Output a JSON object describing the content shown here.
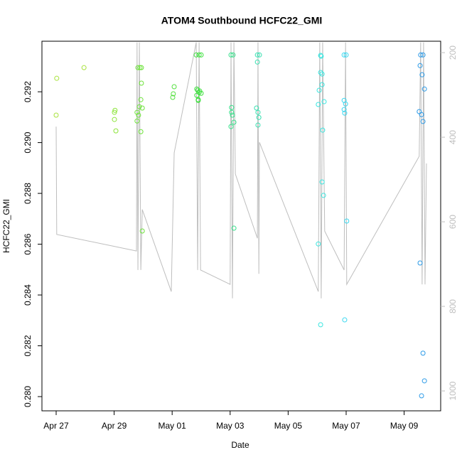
{
  "chart_data": {
    "type": "scatter",
    "title": "ATOM4 Southbound HCFC22_GMI",
    "x_label": "Date",
    "y_label": "HCFC22_GMI",
    "xlim": [
      -0.49,
      13.26
    ],
    "xticks": [
      {
        "value": 0,
        "label": "Apr 27"
      },
      {
        "value": 2,
        "label": "Apr 29"
      },
      {
        "value": 4,
        "label": "May 01"
      },
      {
        "value": 6,
        "label": "May 03"
      },
      {
        "value": 8,
        "label": "May 05"
      },
      {
        "value": 10,
        "label": "May 07"
      },
      {
        "value": 12,
        "label": "May 09"
      }
    ],
    "ylim": [
      0.27944,
      0.29399
    ],
    "yticks": [
      {
        "value": 0.28,
        "label": "0.280"
      },
      0.282,
      0.284,
      0.286,
      0.288,
      {
        "value": 0.29,
        "label": "0.290"
      },
      0.292
    ],
    "y2lim": [
      1047,
      173
    ],
    "y2ticks": [
      200,
      400,
      600,
      800,
      1000
    ],
    "series": [
      {
        "axis": "y2",
        "color": "#bebebe",
        "x": [
          0,
          0.02,
          2.77,
          2.79,
          2.82,
          2.87,
          2.92,
          2.97,
          3.97,
          4.07,
          4.83,
          4.88,
          4.93,
          4.98,
          6.0,
          6.03,
          6.08,
          6.13,
          6.18,
          6.94,
          6.96,
          6.99,
          7.01,
          9.04,
          9.09,
          9.14,
          9.19,
          9.26,
          9.93,
          9.98,
          10.02,
          12.52,
          12.57,
          12.62,
          12.67,
          12.72,
          12.77
        ],
        "values": [
          375,
          630,
          669,
          176,
          714,
          176,
          714,
          571,
          765,
          437,
          176,
          714,
          176,
          714,
          748,
          176,
          781,
          176,
          487,
          639,
          176,
          723,
          412,
          765,
          176,
          781,
          176,
          622,
          714,
          176,
          748,
          445,
          176,
          748,
          176,
          748,
          462
        ]
      },
      {
        "color": "#a8e23c",
        "x": [
          0.02,
          0,
          0.96
        ],
        "values": [
          0.29253,
          0.29108,
          0.29295
        ]
      },
      {
        "color": "#8ce43a",
        "x": [
          2.03,
          2.01,
          2.01,
          2.06
        ],
        "values": [
          0.29127,
          0.29119,
          0.29091,
          0.29046
        ]
      },
      {
        "color": "#6de23a",
        "x": [
          2.82,
          2.89,
          2.94,
          2.79,
          2.84,
          2.79,
          2.87,
          2.92,
          2.94,
          2.92,
          2.97,
          2.97
        ],
        "values": [
          0.29295,
          0.29295,
          0.29295,
          0.29119,
          0.29108,
          0.29085,
          0.29141,
          0.29169,
          0.29234,
          0.29043,
          0.28652,
          0.29136
        ]
      },
      {
        "color": "#55e040",
        "x": [
          4.07,
          4.04,
          4.02
        ],
        "values": [
          0.2922,
          0.29192,
          0.29178
        ]
      },
      {
        "color": "#3ee03e",
        "x": [
          4.83,
          4.93,
          5.0,
          4.85,
          4.88,
          4.93,
          4.9,
          4.95,
          4.85,
          4.9,
          5.0
        ],
        "values": [
          0.29345,
          0.29345,
          0.29345,
          0.29211,
          0.29206,
          0.29197,
          0.29169,
          0.29203,
          0.29186,
          0.29166,
          0.29194
        ]
      },
      {
        "color": "#36e08a",
        "x": [
          6.03,
          6.1,
          6.05,
          6.08,
          6.13,
          6.03,
          6.05,
          6.13
        ],
        "values": [
          0.29345,
          0.29345,
          0.29138,
          0.29108,
          0.2908,
          0.29063,
          0.29119,
          0.28663
        ]
      },
      {
        "color": "#36e0b0",
        "x": [
          6.94,
          7.01,
          6.94,
          6.91,
          6.96,
          6.99,
          6.96
        ],
        "values": [
          0.29345,
          0.29345,
          0.29317,
          0.29136,
          0.29119,
          0.29099,
          0.29069
        ]
      },
      {
        "color": "#3ae6e0",
        "x": [
          9.12,
          9.14,
          9.12,
          9.17,
          9.07,
          9.17,
          9.04,
          9.24,
          9.19,
          9.17,
          9.22,
          9.04,
          9.12
        ],
        "values": [
          0.29343,
          0.2934,
          0.29276,
          0.2927,
          0.29206,
          0.29228,
          0.2915,
          0.29161,
          0.29049,
          0.28845,
          0.28792,
          0.28601,
          0.28283
        ]
      },
      {
        "color": "#3ad8f0",
        "x": [
          9.93,
          10.0,
          9.93,
          9.98,
          9.93,
          9.95,
          10.02,
          9.95
        ],
        "values": [
          0.29345,
          0.29345,
          0.29166,
          0.29152,
          0.2913,
          0.29116,
          0.28691,
          0.28302
        ]
      },
      {
        "color": "#2a9ae8",
        "x": [
          12.57,
          12.65,
          12.55,
          12.62,
          12.7,
          12.52,
          12.6,
          12.65,
          12.55,
          12.65,
          12.7,
          12.6
        ],
        "values": [
          0.29345,
          0.29345,
          0.29303,
          0.29267,
          0.29211,
          0.29122,
          0.2911,
          0.29083,
          0.28526,
          0.28171,
          0.28062,
          0.28003
        ]
      }
    ]
  }
}
